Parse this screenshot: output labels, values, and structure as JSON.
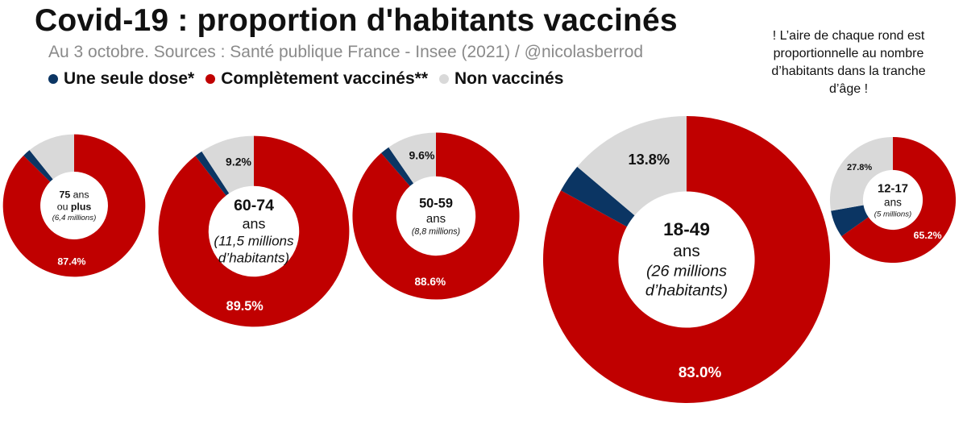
{
  "title": "Covid-19 : proportion d'habitants vaccinés",
  "subtitle": "Au 3 octobre. Sources : Santé publique France - Insee (2021) / @nicolasberrod",
  "legend": [
    {
      "label": "Une seule dose*",
      "color": "#0b3563"
    },
    {
      "label": "Complètement vaccinés**",
      "color": "#c00000"
    },
    {
      "label": "Non vaccinés",
      "color": "#d9d9d9"
    }
  ],
  "note": "! L’aire de chaque rond est proportionnelle au nombre d’habitants dans la tranche d’âge !",
  "chart_data": {
    "type": "donut",
    "note": "Area of each donut proportional to population",
    "series_names": [
      "Une seule dose*",
      "Complètement vaccinés**",
      "Non vaccinés"
    ],
    "groups": [
      {
        "age": "75",
        "age_suffix": " ans",
        "label_line2": "ou plus",
        "population_text": "(6,4 millions)",
        "population_millions": 6.4,
        "values": {
          "one_dose": 1.8,
          "fully": 87.4,
          "unvaccinated": 10.8
        },
        "labels": {
          "fully": "87.4%"
        }
      },
      {
        "age": "60-74",
        "label_line2": "ans",
        "population_text": "(11,5 millions d’habitants)",
        "population_millions": 11.5,
        "values": {
          "one_dose": 1.3,
          "fully": 89.5,
          "unvaccinated": 9.2
        },
        "labels": {
          "fully": "89.5%",
          "unvaccinated": "9.2%"
        }
      },
      {
        "age": "50-59",
        "label_line2": "ans",
        "population_text": "(8,8 millions)",
        "population_millions": 8.8,
        "values": {
          "one_dose": 1.8,
          "fully": 88.6,
          "unvaccinated": 9.6
        },
        "labels": {
          "fully": "88.6%",
          "unvaccinated": "9.6%"
        }
      },
      {
        "age": "18-49",
        "label_line2": "ans",
        "population_text": "(26 millions d’habitants)",
        "population_millions": 26,
        "values": {
          "one_dose": 3.2,
          "fully": 83.0,
          "unvaccinated": 13.8
        },
        "labels": {
          "fully": "83.0%",
          "unvaccinated": "13.8%"
        }
      },
      {
        "age": "12-17",
        "label_line2": "ans",
        "population_text": "(5 millions)",
        "population_millions": 5,
        "values": {
          "one_dose": 7.0,
          "fully": 65.2,
          "unvaccinated": 27.8
        },
        "labels": {
          "fully": "65.2%",
          "unvaccinated": "27.8%"
        }
      }
    ]
  }
}
